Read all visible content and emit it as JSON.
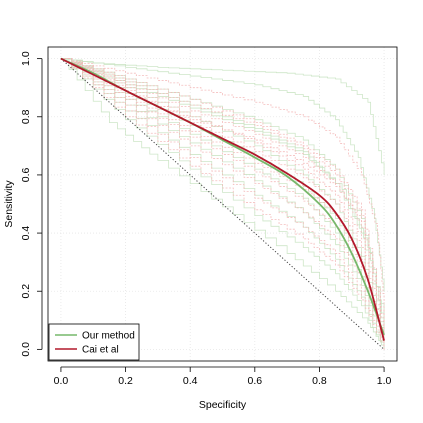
{
  "chart_data": {
    "type": "line",
    "title": "",
    "xlabel": "Specificity",
    "ylabel": "Sensitivity",
    "xlim": [
      -0.04,
      1.04
    ],
    "ylim": [
      -0.04,
      1.04
    ],
    "x_ticks": [
      0.0,
      0.2,
      0.4,
      0.6,
      0.8,
      1.0
    ],
    "y_ticks": [
      0.0,
      0.2,
      0.4,
      0.6,
      0.8,
      1.0
    ],
    "x_tick_labels": [
      "0.0",
      "0.2",
      "0.4",
      "0.6",
      "0.8",
      "1.0"
    ],
    "y_tick_labels": [
      "0.0",
      "0.2",
      "0.4",
      "0.6",
      "0.8",
      "1.0"
    ],
    "grid": true,
    "legend_position": "bottom-left",
    "colors": {
      "our_method": "#77b86b",
      "cai": "#b2182b",
      "our_method_faint": "#c9e3c2",
      "cai_faint": "#f3b7b7",
      "diagonal": "#444444",
      "grid": "#e6e6e6"
    },
    "series": [
      {
        "name": "Our method",
        "color": "#77b86b",
        "x": [
          0.0,
          0.1,
          0.2,
          0.3,
          0.4,
          0.5,
          0.6,
          0.7,
          0.8,
          0.85,
          0.9,
          0.95,
          1.0
        ],
        "y": [
          1.0,
          0.95,
          0.89,
          0.835,
          0.78,
          0.72,
          0.66,
          0.595,
          0.5,
          0.43,
          0.33,
          0.2,
          0.05
        ]
      },
      {
        "name": "Cai et al",
        "color": "#b2182b",
        "x": [
          0.0,
          0.1,
          0.2,
          0.3,
          0.4,
          0.5,
          0.6,
          0.7,
          0.8,
          0.85,
          0.9,
          0.95,
          1.0
        ],
        "y": [
          1.0,
          0.945,
          0.89,
          0.835,
          0.78,
          0.725,
          0.67,
          0.605,
          0.53,
          0.47,
          0.38,
          0.24,
          0.03
        ]
      }
    ],
    "reference_line": {
      "x": [
        0.0,
        1.0
      ],
      "y": [
        1.0,
        0.0
      ]
    },
    "faint_curves": {
      "green": [
        [
          [
            0,
            1.0
          ],
          [
            0.1,
            0.985
          ],
          [
            0.3,
            0.97
          ],
          [
            0.5,
            0.96
          ],
          [
            0.7,
            0.95
          ],
          [
            0.85,
            0.93
          ],
          [
            0.95,
            0.85
          ],
          [
            1.0,
            0.6
          ]
        ],
        [
          [
            0,
            1.0
          ],
          [
            0.2,
            0.97
          ],
          [
            0.4,
            0.94
          ],
          [
            0.6,
            0.91
          ],
          [
            0.75,
            0.87
          ],
          [
            0.85,
            0.79
          ],
          [
            0.92,
            0.66
          ],
          [
            0.97,
            0.45
          ],
          [
            1.0,
            0.2
          ]
        ],
        [
          [
            0,
            1.0
          ],
          [
            0.2,
            0.93
          ],
          [
            0.4,
            0.86
          ],
          [
            0.6,
            0.79
          ],
          [
            0.75,
            0.72
          ],
          [
            0.85,
            0.62
          ],
          [
            0.93,
            0.45
          ],
          [
            1.0,
            0.1
          ]
        ],
        [
          [
            0,
            1.0
          ],
          [
            0.2,
            0.92
          ],
          [
            0.4,
            0.84
          ],
          [
            0.6,
            0.76
          ],
          [
            0.75,
            0.68
          ],
          [
            0.85,
            0.57
          ],
          [
            0.93,
            0.4
          ],
          [
            1.0,
            0.05
          ]
        ],
        [
          [
            0,
            1.0
          ],
          [
            0.2,
            0.9
          ],
          [
            0.4,
            0.8
          ],
          [
            0.6,
            0.7
          ],
          [
            0.75,
            0.6
          ],
          [
            0.85,
            0.5
          ],
          [
            0.93,
            0.32
          ],
          [
            1.0,
            0.05
          ]
        ],
        [
          [
            0,
            1.0
          ],
          [
            0.2,
            0.88
          ],
          [
            0.4,
            0.77
          ],
          [
            0.6,
            0.66
          ],
          [
            0.75,
            0.56
          ],
          [
            0.85,
            0.45
          ],
          [
            0.93,
            0.3
          ],
          [
            1.0,
            0.03
          ]
        ],
        [
          [
            0,
            1.0
          ],
          [
            0.2,
            0.86
          ],
          [
            0.4,
            0.74
          ],
          [
            0.6,
            0.62
          ],
          [
            0.75,
            0.52
          ],
          [
            0.85,
            0.4
          ],
          [
            0.93,
            0.25
          ],
          [
            1.0,
            0.02
          ]
        ],
        [
          [
            0,
            1.0
          ],
          [
            0.2,
            0.84
          ],
          [
            0.4,
            0.71
          ],
          [
            0.6,
            0.58
          ],
          [
            0.75,
            0.47
          ],
          [
            0.85,
            0.36
          ],
          [
            0.93,
            0.22
          ],
          [
            1.0,
            0.01
          ]
        ],
        [
          [
            0,
            1.0
          ],
          [
            0.2,
            0.82
          ],
          [
            0.4,
            0.67
          ],
          [
            0.6,
            0.53
          ],
          [
            0.75,
            0.42
          ],
          [
            0.85,
            0.31
          ],
          [
            0.93,
            0.18
          ],
          [
            1.0,
            0.0
          ]
        ],
        [
          [
            0,
            1.0
          ],
          [
            0.2,
            0.79
          ],
          [
            0.4,
            0.62
          ],
          [
            0.6,
            0.46
          ],
          [
            0.75,
            0.35
          ],
          [
            0.85,
            0.26
          ],
          [
            0.93,
            0.15
          ],
          [
            1.0,
            0.0
          ]
        ],
        [
          [
            0,
            1.0
          ],
          [
            0.15,
            0.78
          ],
          [
            0.3,
            0.65
          ],
          [
            0.5,
            0.49
          ],
          [
            0.7,
            0.33
          ],
          [
            0.85,
            0.2
          ],
          [
            0.95,
            0.09
          ],
          [
            1.0,
            0.0
          ]
        ],
        [
          [
            0,
            1.0
          ],
          [
            0.2,
            0.91
          ],
          [
            0.4,
            0.83
          ],
          [
            0.6,
            0.75
          ],
          [
            0.75,
            0.67
          ],
          [
            0.87,
            0.55
          ],
          [
            0.95,
            0.35
          ],
          [
            1.0,
            0.08
          ]
        ]
      ],
      "red": [
        [
          [
            0,
            1.0
          ],
          [
            0.2,
            0.95
          ],
          [
            0.4,
            0.9
          ],
          [
            0.6,
            0.85
          ],
          [
            0.75,
            0.8
          ],
          [
            0.85,
            0.73
          ],
          [
            0.93,
            0.6
          ],
          [
            0.98,
            0.4
          ],
          [
            1.0,
            0.15
          ]
        ],
        [
          [
            0,
            1.0
          ],
          [
            0.2,
            0.93
          ],
          [
            0.4,
            0.86
          ],
          [
            0.6,
            0.78
          ],
          [
            0.75,
            0.7
          ],
          [
            0.85,
            0.62
          ],
          [
            0.93,
            0.48
          ],
          [
            1.0,
            0.08
          ]
        ],
        [
          [
            0,
            1.0
          ],
          [
            0.2,
            0.91
          ],
          [
            0.4,
            0.82
          ],
          [
            0.6,
            0.74
          ],
          [
            0.75,
            0.66
          ],
          [
            0.85,
            0.57
          ],
          [
            0.93,
            0.42
          ],
          [
            1.0,
            0.05
          ]
        ],
        [
          [
            0,
            1.0
          ],
          [
            0.2,
            0.9
          ],
          [
            0.4,
            0.8
          ],
          [
            0.6,
            0.71
          ],
          [
            0.75,
            0.62
          ],
          [
            0.85,
            0.53
          ],
          [
            0.93,
            0.38
          ],
          [
            1.0,
            0.04
          ]
        ],
        [
          [
            0,
            1.0
          ],
          [
            0.2,
            0.89
          ],
          [
            0.4,
            0.78
          ],
          [
            0.6,
            0.68
          ],
          [
            0.75,
            0.59
          ],
          [
            0.85,
            0.5
          ],
          [
            0.93,
            0.35
          ],
          [
            1.0,
            0.03
          ]
        ],
        [
          [
            0,
            1.0
          ],
          [
            0.2,
            0.87
          ],
          [
            0.4,
            0.75
          ],
          [
            0.6,
            0.64
          ],
          [
            0.75,
            0.55
          ],
          [
            0.85,
            0.46
          ],
          [
            0.93,
            0.31
          ],
          [
            1.0,
            0.02
          ]
        ],
        [
          [
            0,
            1.0
          ],
          [
            0.2,
            0.86
          ],
          [
            0.4,
            0.73
          ],
          [
            0.6,
            0.61
          ],
          [
            0.75,
            0.51
          ],
          [
            0.85,
            0.42
          ],
          [
            0.93,
            0.28
          ],
          [
            1.0,
            0.01
          ]
        ],
        [
          [
            0,
            1.0
          ],
          [
            0.2,
            0.84
          ],
          [
            0.4,
            0.7
          ],
          [
            0.6,
            0.57
          ],
          [
            0.75,
            0.47
          ],
          [
            0.85,
            0.38
          ],
          [
            0.93,
            0.24
          ],
          [
            1.0,
            0.0
          ]
        ],
        [
          [
            0,
            1.0
          ],
          [
            0.2,
            0.82
          ],
          [
            0.4,
            0.66
          ],
          [
            0.6,
            0.52
          ],
          [
            0.75,
            0.42
          ],
          [
            0.85,
            0.33
          ],
          [
            0.93,
            0.2
          ],
          [
            1.0,
            0.0
          ]
        ],
        [
          [
            0,
            1.0
          ],
          [
            0.2,
            0.8
          ],
          [
            0.4,
            0.63
          ],
          [
            0.6,
            0.48
          ],
          [
            0.75,
            0.38
          ],
          [
            0.85,
            0.29
          ],
          [
            0.93,
            0.17
          ],
          [
            1.0,
            0.0
          ]
        ],
        [
          [
            0,
            1.0
          ],
          [
            0.2,
            0.88
          ],
          [
            0.4,
            0.79
          ],
          [
            0.6,
            0.72
          ],
          [
            0.75,
            0.64
          ],
          [
            0.85,
            0.56
          ],
          [
            0.93,
            0.44
          ],
          [
            1.0,
            0.06
          ]
        ],
        [
          [
            0,
            1.0
          ],
          [
            0.2,
            0.92
          ],
          [
            0.4,
            0.84
          ],
          [
            0.6,
            0.77
          ],
          [
            0.75,
            0.69
          ],
          [
            0.85,
            0.6
          ],
          [
            0.93,
            0.46
          ],
          [
            1.0,
            0.07
          ]
        ]
      ]
    }
  }
}
